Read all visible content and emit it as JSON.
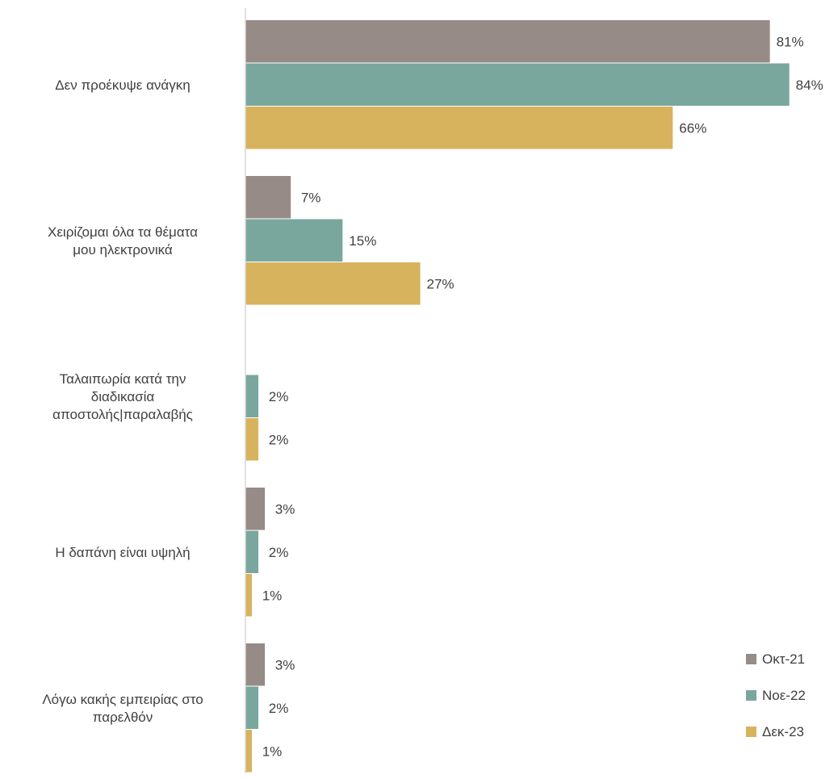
{
  "chart_data": {
    "type": "bar",
    "orientation": "horizontal",
    "categories": [
      [
        "Δεν προέκυψε ανάγκη"
      ],
      [
        "Χειρίζομαι όλα τα θέματα",
        "μου ηλεκτρονικά"
      ],
      [
        "Ταλαιπωρία κατά την",
        "διαδικασία",
        "αποστολής|παραλαβής"
      ],
      [
        "Η δαπάνη είναι υψηλή"
      ],
      [
        "Λόγω κακής εμπειρίας στο",
        "παρελθόν"
      ]
    ],
    "series": [
      {
        "name": "Οκτ-21",
        "color": "#968B87",
        "values": [
          81,
          7,
          null,
          3,
          3
        ],
        "labels": [
          "81%",
          "7%",
          "",
          "3%",
          "3%"
        ]
      },
      {
        "name": "Νοε-22",
        "color": "#7AA79D",
        "values": [
          84,
          15,
          2,
          2,
          2
        ],
        "labels": [
          "84%",
          "15%",
          "2%",
          "2%",
          "2%"
        ]
      },
      {
        "name": "Δεκ-23",
        "color": "#D8B35D",
        "values": [
          66,
          27,
          2,
          1,
          1
        ],
        "labels": [
          "66%",
          "27%",
          "2%",
          "1%",
          "1%"
        ]
      }
    ],
    "xlim": [
      0,
      90
    ],
    "legend": "bottom-right",
    "grid": false
  }
}
